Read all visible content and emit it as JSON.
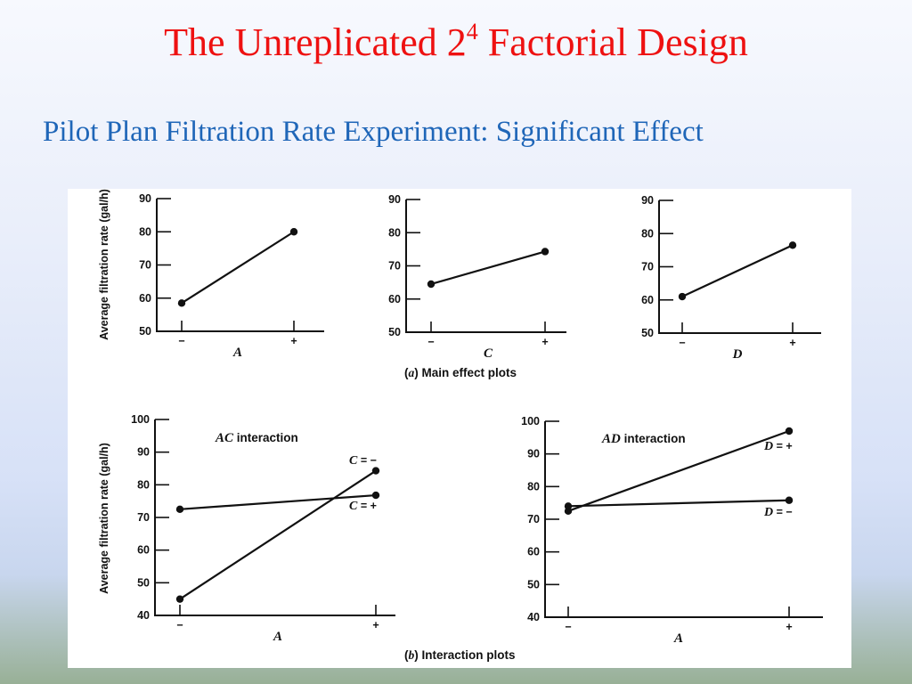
{
  "slide": {
    "title_main": "The Unreplicated 2",
    "title_sup": "4",
    "title_tail": " Factorial Design",
    "subtitle": "Pilot Plan Filtration Rate Experiment: Significant Effect"
  },
  "figure": {
    "caption_a_prefix": "(",
    "caption_a_letter": "a",
    "caption_a_text": ") Main effect plots",
    "caption_b_prefix": "(",
    "caption_b_letter": "b",
    "caption_b_text": ") Interaction plots"
  },
  "chart_data": [
    {
      "type": "line",
      "panel": "main-effect-A",
      "categories": [
        "−",
        "+"
      ],
      "xlabel": "A",
      "ylabel": "Average filtration rate (gal/h)",
      "ylim": [
        50,
        90
      ],
      "yticks": [
        50,
        60,
        70,
        80,
        90
      ],
      "series": [
        {
          "values": [
            58.5,
            80
          ]
        }
      ]
    },
    {
      "type": "line",
      "panel": "main-effect-C",
      "categories": [
        "−",
        "+"
      ],
      "xlabel": "C",
      "ylabel": "",
      "ylim": [
        50,
        90
      ],
      "yticks": [
        50,
        60,
        70,
        80,
        90
      ],
      "series": [
        {
          "values": [
            64.5,
            74.3
          ]
        }
      ]
    },
    {
      "type": "line",
      "panel": "main-effect-D",
      "categories": [
        "−",
        "+"
      ],
      "xlabel": "D",
      "ylabel": "",
      "ylim": [
        50,
        90
      ],
      "yticks": [
        50,
        60,
        70,
        80,
        90
      ],
      "series": [
        {
          "values": [
            61,
            76.5
          ]
        }
      ]
    },
    {
      "type": "line",
      "panel": "interaction-AC",
      "title_italic": "AC",
      "title_text": " interaction",
      "categories": [
        "−",
        "+"
      ],
      "xlabel": "A",
      "ylabel": "Average filtration rate (gal/h)",
      "ylim": [
        40,
        100
      ],
      "yticks": [
        40,
        50,
        60,
        70,
        80,
        90,
        100
      ],
      "series": [
        {
          "name_italic": "C",
          "name_text": " = −",
          "values": [
            45,
            84.3
          ]
        },
        {
          "name_italic": "C",
          "name_text": " = +",
          "values": [
            72.5,
            76.8
          ]
        }
      ]
    },
    {
      "type": "line",
      "panel": "interaction-AD",
      "title_italic": "AD",
      "title_text": " interaction",
      "categories": [
        "−",
        "+"
      ],
      "xlabel": "A",
      "ylabel": "",
      "ylim": [
        40,
        100
      ],
      "yticks": [
        40,
        50,
        60,
        70,
        80,
        90,
        100
      ],
      "series": [
        {
          "name_italic": "D",
          "name_text": " = +",
          "values": [
            72.5,
            97
          ]
        },
        {
          "name_italic": "D",
          "name_text": " = −",
          "values": [
            74,
            75.8
          ]
        }
      ]
    }
  ]
}
